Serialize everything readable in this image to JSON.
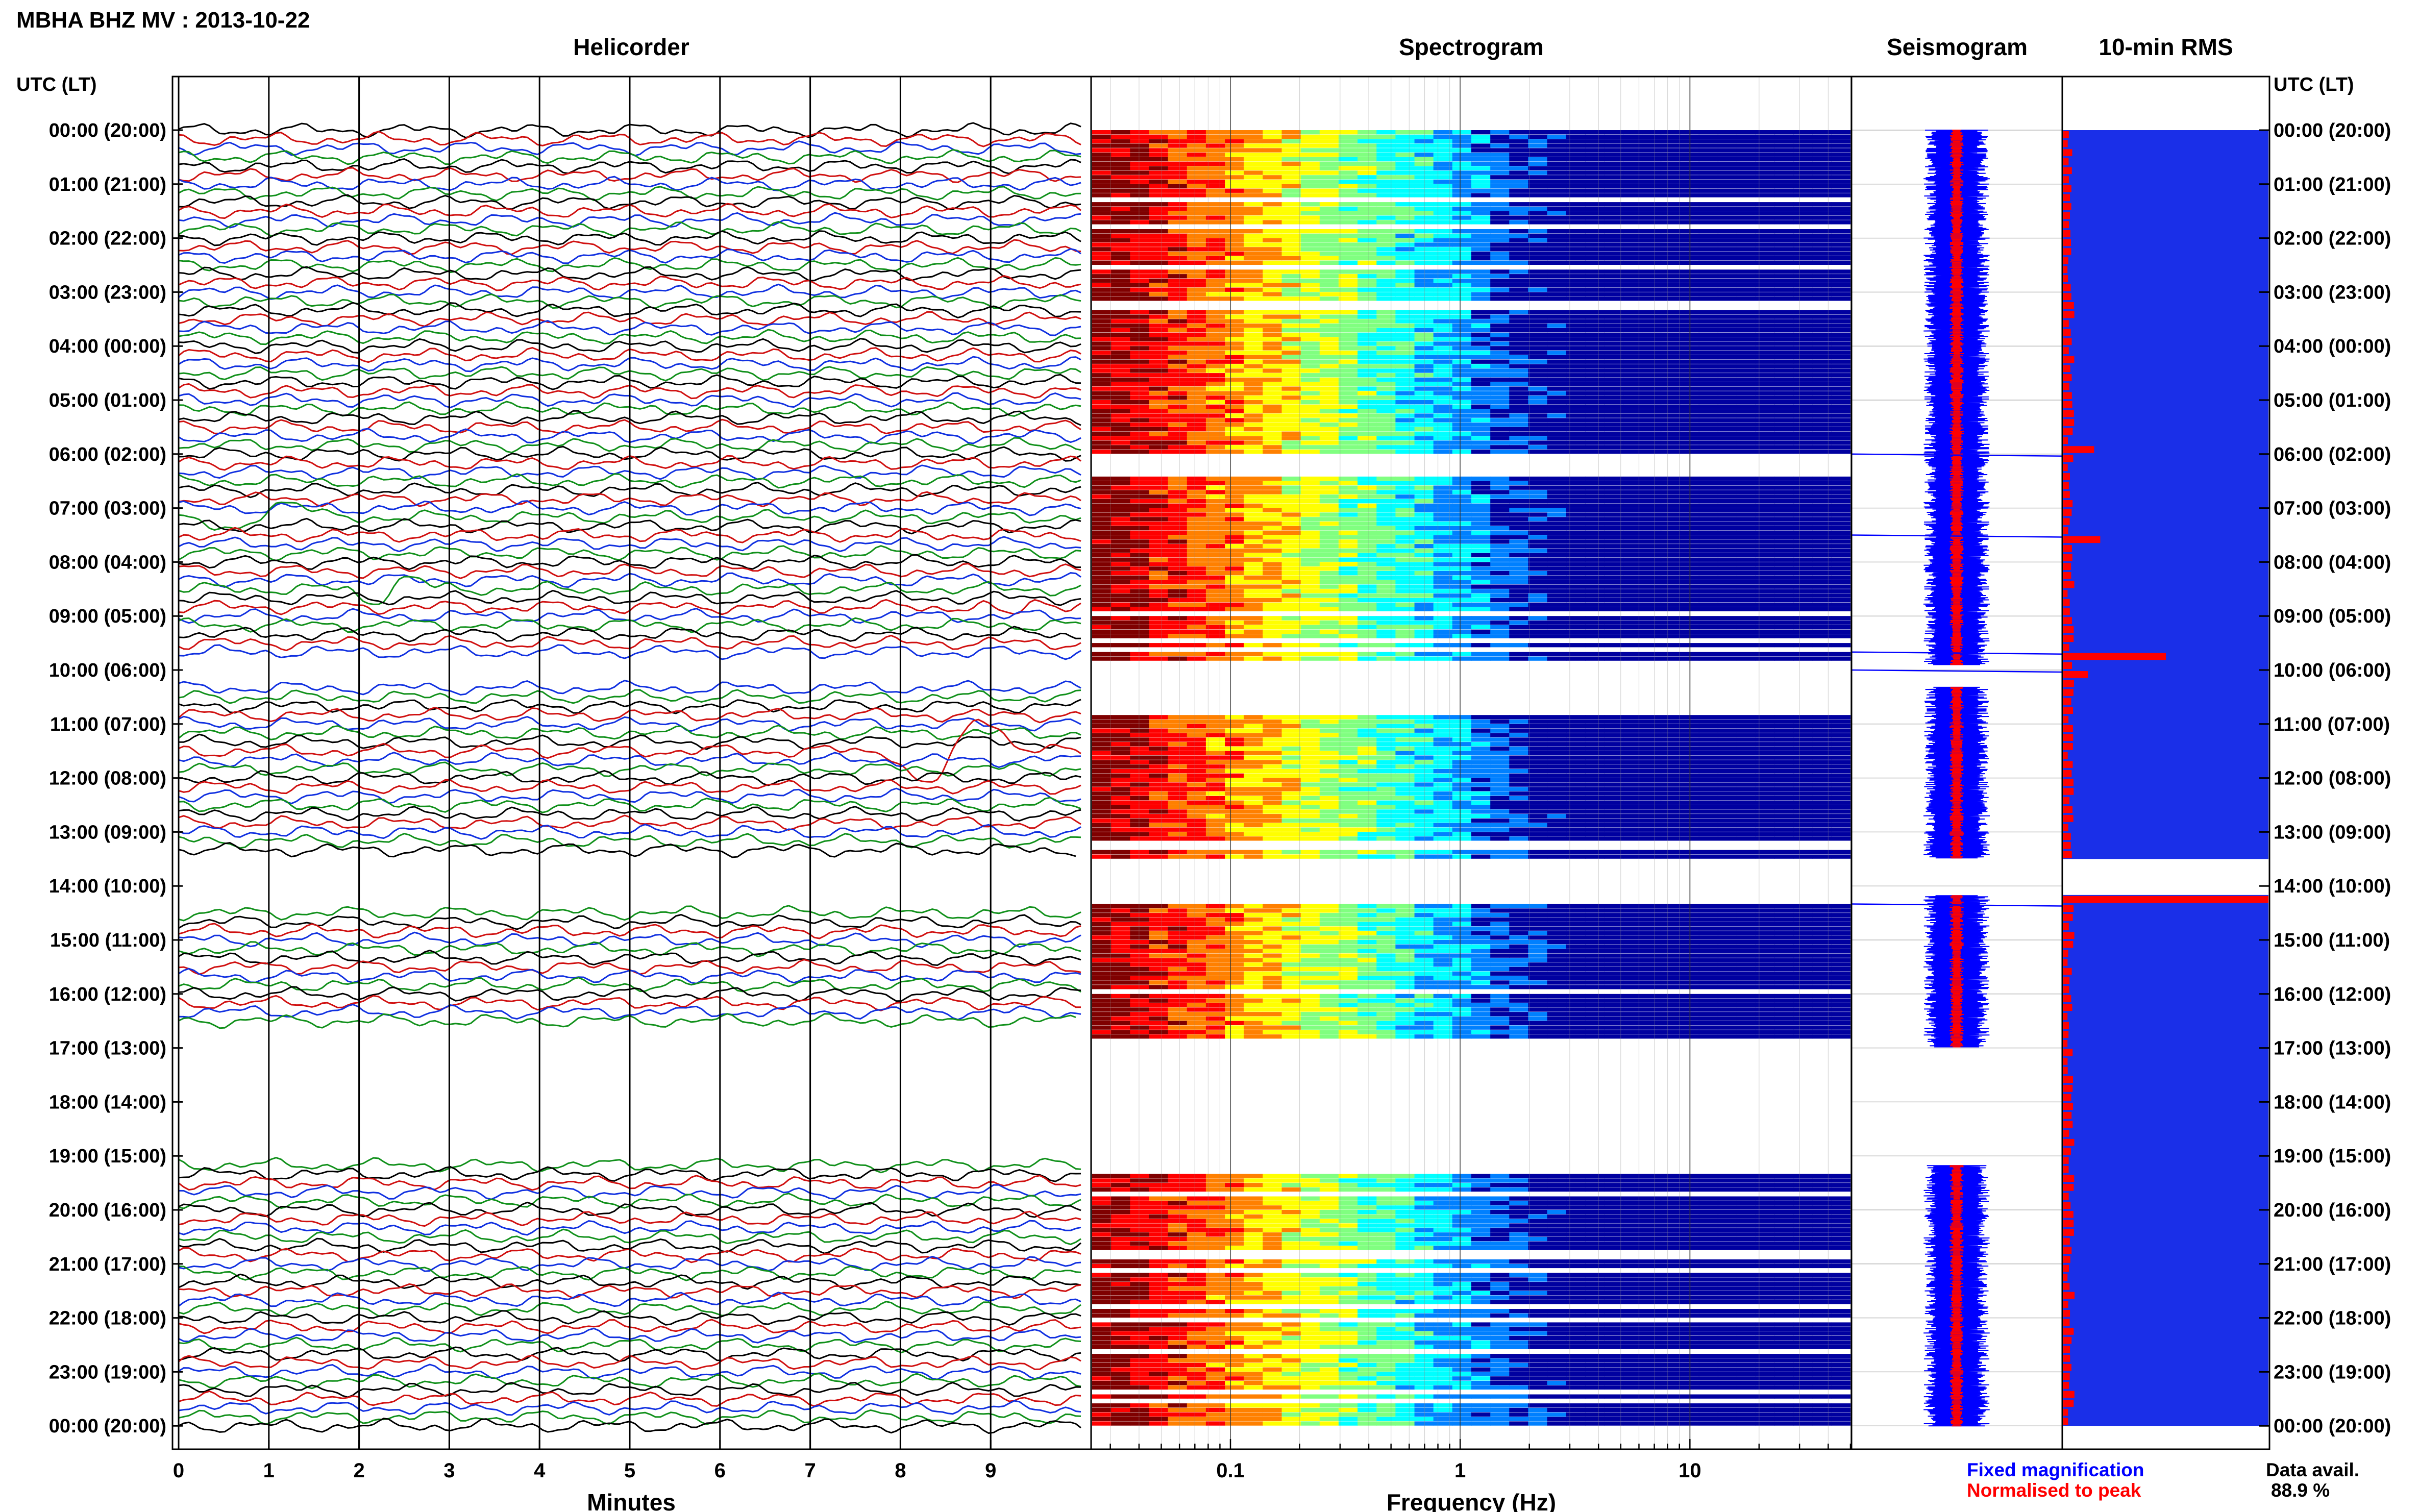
{
  "title": "MBHA BHZ MV : 2013-10-22",
  "chart_data": [
    {
      "type": "line",
      "panel": "Helicorder",
      "title": "Helicorder",
      "xlabel": "Minutes",
      "x_ticks": [
        "0",
        "1",
        "2",
        "3",
        "4",
        "5",
        "6",
        "7",
        "8",
        "9"
      ],
      "xlim": [
        0,
        10
      ],
      "trace_colors": [
        "#000000",
        "#d01010",
        "#1030e0",
        "#10901a"
      ],
      "rows_per_hour": 6,
      "gaps": [
        {
          "from": "09:50",
          "to": "10:20"
        },
        {
          "from": "13:30",
          "to": "14:30"
        },
        {
          "from": "16:40",
          "to": "19:10"
        }
      ],
      "large_waves": [
        {
          "row_time": "07:10",
          "x_minutes": [
            0.0,
            1.7
          ],
          "amplitude_rows": 4
        },
        {
          "row_time": "08:30",
          "x_minutes": [
            1.8,
            2.9
          ],
          "amplitude_rows": 3
        },
        {
          "row_time": "08:50",
          "x_minutes": [
            8.9,
            9.9
          ],
          "amplitude_rows": 2
        },
        {
          "row_time": "11:30",
          "x_minutes": [
            7.8,
            9.4
          ],
          "amplitude_rows": 9
        }
      ]
    },
    {
      "type": "heatmap",
      "panel": "Spectrogram",
      "title": "Spectrogram",
      "xlabel": "Frequency (Hz)",
      "x_scale": "log",
      "xlim": [
        0.025,
        50
      ],
      "x_ticks": [
        "0.1",
        "1",
        "10"
      ],
      "colormap": [
        "#7f0000",
        "#ff0000",
        "#ff8000",
        "#ffff00",
        "#80ff80",
        "#00ffff",
        "#0080ff",
        "#0000a0"
      ],
      "gaps": [
        {
          "from": "06:00",
          "to": "06:20"
        },
        {
          "from": "09:50",
          "to": "10:50"
        },
        {
          "from": "13:30",
          "to": "14:20"
        },
        {
          "from": "16:50",
          "to": "19:20"
        }
      ]
    },
    {
      "type": "line",
      "panel": "Seismogram",
      "title": "Seismogram",
      "series": [
        {
          "name": "Fixed magnification",
          "color": "#0000ff"
        },
        {
          "name": "Normalised to peak",
          "color": "#ff0000"
        }
      ],
      "spikes": [
        "06:00",
        "07:30",
        "09:40",
        "10:00",
        "14:20"
      ]
    },
    {
      "type": "bar",
      "panel": "10-min RMS",
      "title": "10-min RMS",
      "background": "#1a2fe8",
      "bar_color": "#ff0000",
      "gap": {
        "from": "13:30",
        "to": "14:10"
      },
      "peaks": [
        {
          "time": "05:50",
          "value": 0.15
        },
        {
          "time": "07:30",
          "value": 0.18
        },
        {
          "time": "09:40",
          "value": 0.5
        },
        {
          "time": "10:00",
          "value": 0.12
        },
        {
          "time": "14:10",
          "value": 1.0
        }
      ]
    }
  ],
  "time_axis": {
    "header": "UTC (LT)",
    "labels": [
      "00:00 (20:00)",
      "01:00 (21:00)",
      "02:00 (22:00)",
      "03:00 (23:00)",
      "04:00 (00:00)",
      "05:00 (01:00)",
      "06:00 (02:00)",
      "07:00 (03:00)",
      "08:00 (04:00)",
      "09:00 (05:00)",
      "10:00 (06:00)",
      "11:00 (07:00)",
      "12:00 (08:00)",
      "13:00 (09:00)",
      "14:00 (10:00)",
      "15:00 (11:00)",
      "16:00 (12:00)",
      "17:00 (13:00)",
      "18:00 (14:00)",
      "19:00 (15:00)",
      "20:00 (16:00)",
      "21:00 (17:00)",
      "22:00 (18:00)",
      "23:00 (19:00)",
      "00:00 (20:00)"
    ]
  },
  "legend": {
    "fixed": "Fixed magnification",
    "normalised": "Normalised to peak",
    "fixed_color": "#0000ff",
    "normalised_color": "#ff0000"
  },
  "data_avail": {
    "label": "Data avail.",
    "value": "88.9 %"
  }
}
